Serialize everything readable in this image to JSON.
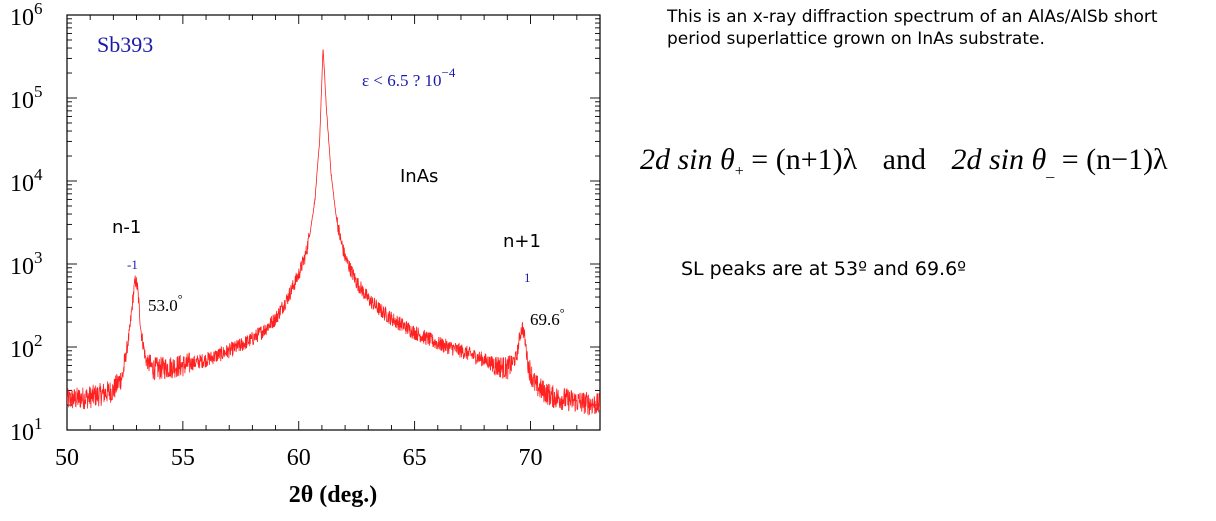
{
  "description": "This is an x-ray diffraction spectrum of an AlAs/AlSb short period superlattice grown on InAs substrate.",
  "equation": {
    "left": "2d sin θ",
    "left_sub": "+",
    "left_rhs": " = (n+1)λ",
    "connector": "and",
    "right": "2d sin θ",
    "right_sub": "_",
    "right_rhs": " = (n−1)λ"
  },
  "sl_note": "SL peaks are at 53º and 69.6º",
  "colors": {
    "trace": "#ff2020",
    "sample_label": "#1a1aaa",
    "order_label": "#1a1aaa",
    "text": "#000000"
  },
  "chart_data": {
    "type": "line",
    "y_scale": "log",
    "xlim": [
      50,
      73
    ],
    "ylim": [
      10,
      1000000
    ],
    "xlabel": "2θ (deg.)",
    "ylabel": "",
    "x_ticks": [
      "50",
      "55",
      "60",
      "65",
      "70"
    ],
    "y_tick_labels": [
      {
        "base": "10",
        "exp": "1"
      },
      {
        "base": "10",
        "exp": "2"
      },
      {
        "base": "10",
        "exp": "3"
      },
      {
        "base": "10",
        "exp": "4"
      },
      {
        "base": "10",
        "exp": "5"
      },
      {
        "base": "10",
        "exp": "6"
      }
    ],
    "sample_label": "Sb393",
    "strain_label": "ε < 6.5 ? 10",
    "strain_exp": "−4",
    "substrate_label": "InAs",
    "peak_labels": [
      {
        "order": "n-1",
        "index": "-1",
        "angle": "53.0",
        "degree": "°"
      },
      {
        "order": "n+1",
        "index": "1",
        "angle": "69.6",
        "degree": "°"
      }
    ],
    "series": [
      {
        "x": [
          50,
          50.5,
          51,
          51.5,
          52,
          52.4,
          52.7,
          52.85,
          52.95,
          53.05,
          53.2,
          53.4,
          53.7,
          54,
          55,
          56,
          57,
          57.5,
          58,
          58.5,
          59,
          59.5,
          60,
          60.3,
          60.5,
          60.7,
          60.9,
          61.05,
          61.2,
          61.4,
          61.6,
          61.8,
          62,
          62.5,
          63,
          63.5,
          64,
          65,
          66,
          67,
          68,
          68.5,
          69,
          69.4,
          69.55,
          69.65,
          69.75,
          69.9,
          70.2,
          70.5,
          71,
          72,
          73
        ],
        "y": [
          23,
          24,
          25,
          27,
          30,
          45,
          150,
          400,
          650,
          500,
          150,
          70,
          55,
          55,
          60,
          70,
          90,
          105,
          125,
          160,
          220,
          380,
          750,
          1300,
          2500,
          6000,
          30000,
          400000,
          70000,
          12000,
          4000,
          2000,
          1200,
          600,
          380,
          280,
          220,
          150,
          110,
          90,
          70,
          60,
          55,
          75,
          140,
          175,
          130,
          60,
          35,
          30,
          25,
          22,
          20
        ]
      }
    ]
  }
}
